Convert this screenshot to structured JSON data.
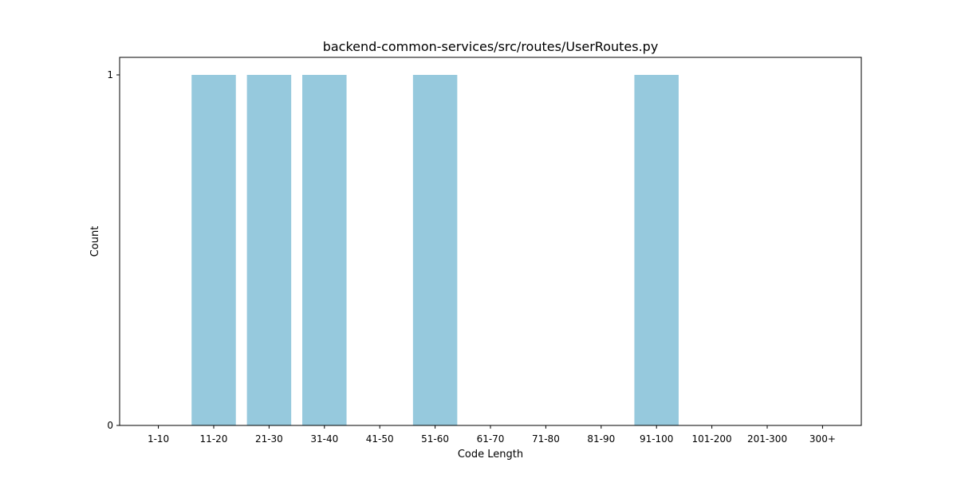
{
  "chart_data": {
    "type": "bar",
    "title": "backend-common-services/src/routes/UserRoutes.py",
    "xlabel": "Code Length",
    "ylabel": "Count",
    "categories": [
      "1-10",
      "11-20",
      "21-30",
      "31-40",
      "41-50",
      "51-60",
      "61-70",
      "71-80",
      "81-90",
      "91-100",
      "101-200",
      "201-300",
      "300+"
    ],
    "values": [
      0,
      1,
      1,
      1,
      0,
      1,
      0,
      0,
      0,
      1,
      0,
      0,
      0
    ],
    "yticks": [
      0,
      1
    ],
    "ylim": [
      0,
      1.05
    ],
    "bar_color": "#96c9dd",
    "grid": false,
    "legend": "none"
  }
}
